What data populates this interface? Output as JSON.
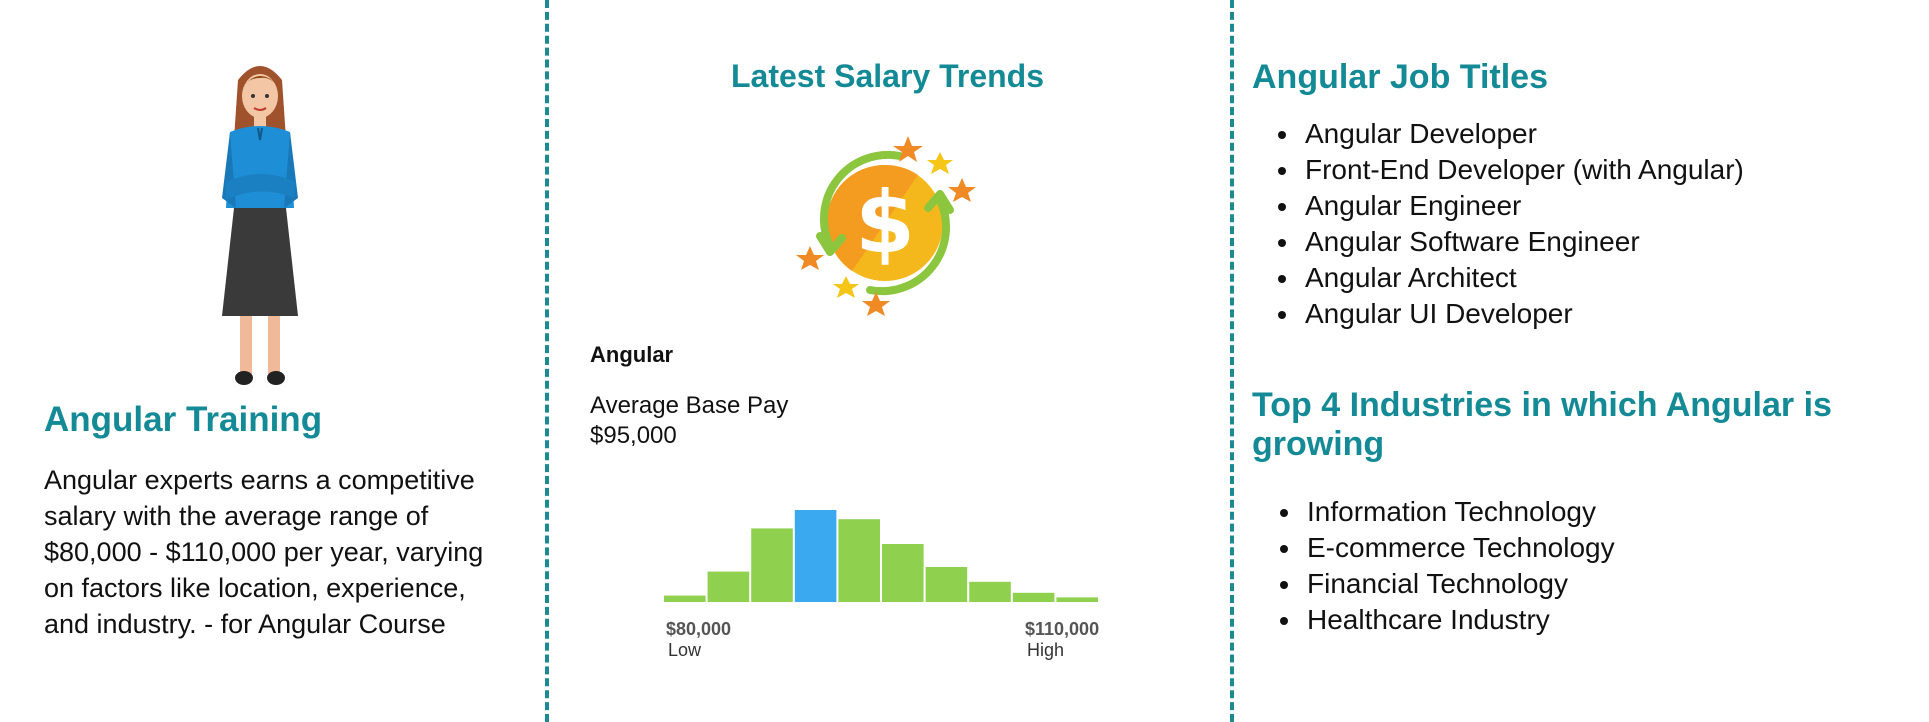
{
  "training": {
    "title": "Angular Training",
    "description": "Angular experts earns a competitive salary with the average range of $80,000 - $110,000 per year, varying on factors like location, experience, and industry. - for Angular Course"
  },
  "salary": {
    "title": "Latest Salary Trends",
    "technology": "Angular",
    "average_label": "Average Base Pay",
    "average_value": "$95,000",
    "histogram": {
      "low_value": "$80,000",
      "low_label": "Low",
      "high_value": "$110,000",
      "high_label": "High",
      "relative_counts": [
        0.07,
        0.33,
        0.8,
        1.0,
        0.9,
        0.63,
        0.38,
        0.22,
        0.1,
        0.05
      ],
      "highlight_index": 3,
      "bar_color": "#8fd14f",
      "highlight_color": "#3aa9f0"
    }
  },
  "jobs": {
    "title": "Angular Job Titles",
    "items": [
      "Angular Developer",
      "Front-End Developer (with Angular)",
      "Angular Engineer",
      "Angular Software Engineer",
      "Angular Architect",
      "Angular UI Developer"
    ]
  },
  "industries": {
    "title": "Top 4 Industries in which Angular is growing",
    "items": [
      "Information Technology",
      "E-commerce Technology",
      "Financial Technology",
      "Healthcare Industry"
    ]
  },
  "icons": {
    "illustration": "woman-professional-illustration",
    "coin": "dollar-coin-icon"
  },
  "colors": {
    "accent": "#138a95",
    "divider": "#1b8a92"
  }
}
